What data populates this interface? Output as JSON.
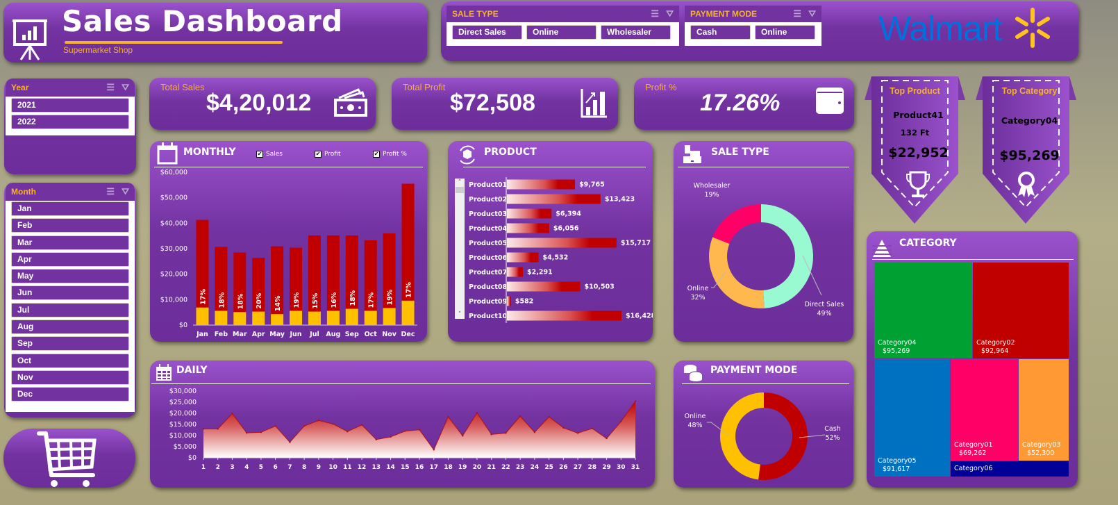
{
  "header": {
    "title": "Sales Dashboard",
    "subtitle": "Supermarket Shop",
    "brand": "Walmart"
  },
  "filters": {
    "sale_type": {
      "label": "SALE TYPE",
      "options": [
        "Direct Sales",
        "Online",
        "Wholesaler"
      ]
    },
    "payment_mode": {
      "label": "PAYMENT MODE",
      "options": [
        "Cash",
        "Online"
      ]
    },
    "year": {
      "label": "Year",
      "options": [
        "2021",
        "2022"
      ]
    },
    "month": {
      "label": "Month",
      "options": [
        "Jan",
        "Feb",
        "Mar",
        "Apr",
        "May",
        "Jun",
        "Jul",
        "Aug",
        "Sep",
        "Oct",
        "Nov",
        "Dec"
      ]
    }
  },
  "kpis": {
    "total_sales": {
      "label": "Total Sales",
      "value": "$4,20,012"
    },
    "total_profit": {
      "label": "Total Profit",
      "value": "$72,508"
    },
    "profit_pct": {
      "label": "Profit %",
      "value": "17.26%"
    }
  },
  "top_product": {
    "label": "Top Product",
    "name": "Product41",
    "qty": "132  Ft",
    "value": "$22,952"
  },
  "top_category": {
    "label": "Top Category",
    "name": "Category04",
    "value": "$95,269"
  },
  "panels": {
    "monthly": "MONTHLY",
    "product": "PRODUCT",
    "sale_type": "SALE TYPE",
    "daily": "DAILY",
    "payment_mode": "PAYMENT MODE",
    "category": "CATEGORY"
  },
  "colors": {
    "purple": "#7232a0",
    "orange": "#f7b12c",
    "red": "#c00000",
    "yellow": "#ffc000",
    "mint": "#99f9d0",
    "pink": "#ff0066",
    "walmart_blue": "#0071dc",
    "walmart_yellow": "#ffc220"
  },
  "chart_data": [
    {
      "type": "bar",
      "title": "MONTHLY",
      "legend": [
        "Sales",
        "Profit",
        "Profit %"
      ],
      "categories": [
        "Jan",
        "Feb",
        "Mar",
        "Apr",
        "May",
        "Jun",
        "Jul",
        "Aug",
        "Sep",
        "Oct",
        "Nov",
        "Dec"
      ],
      "series": [
        {
          "name": "Sales",
          "values": [
            41300,
            30700,
            28500,
            26400,
            30900,
            30400,
            35200,
            35200,
            35200,
            33300,
            36000,
            55500
          ]
        },
        {
          "name": "Profit",
          "values": [
            6900,
            5600,
            5100,
            5300,
            4300,
            5600,
            5300,
            5600,
            6400,
            5600,
            6700,
            9600
          ]
        },
        {
          "name": "Profit %",
          "values": [
            "17%",
            "18%",
            "18%",
            "20%",
            "14%",
            "19%",
            "15%",
            "16%",
            "18%",
            "17%",
            "19%",
            "17%"
          ]
        }
      ],
      "yticks": [
        "$0",
        "$10,000",
        "$20,000",
        "$30,000",
        "$40,000",
        "$50,000",
        "$60,000"
      ],
      "ylim": [
        0,
        60000
      ]
    },
    {
      "type": "bar",
      "title": "PRODUCT",
      "orientation": "horizontal",
      "categories": [
        "Product01",
        "Product02",
        "Product03",
        "Product04",
        "Product05",
        "Product06",
        "Product07",
        "Product08",
        "Product09",
        "Product10"
      ],
      "values": [
        9765,
        13423,
        6394,
        6056,
        15717,
        4532,
        2291,
        10503,
        582,
        16428
      ],
      "labels": [
        "$9,765",
        "$13,423",
        "$6,394",
        "$6,056",
        "$15,717",
        "$4,532",
        "$2,291",
        "$10,503",
        "$582",
        "$16,428"
      ]
    },
    {
      "type": "pie",
      "title": "SALE TYPE",
      "donut": true,
      "categories": [
        "Direct Sales",
        "Online",
        "Wholesaler"
      ],
      "values": [
        49,
        32,
        19
      ],
      "labels": [
        "49%",
        "32%",
        "19%"
      ]
    },
    {
      "type": "area",
      "title": "DAILY",
      "x": [
        1,
        2,
        3,
        4,
        5,
        6,
        7,
        8,
        9,
        10,
        11,
        12,
        13,
        14,
        15,
        16,
        17,
        18,
        19,
        20,
        21,
        22,
        23,
        24,
        25,
        26,
        27,
        28,
        29,
        30,
        31
      ],
      "values": [
        13000,
        13000,
        19900,
        11200,
        11500,
        14300,
        7000,
        14300,
        16800,
        15200,
        11800,
        14800,
        8200,
        9400,
        12000,
        12600,
        3600,
        18400,
        9900,
        20200,
        10500,
        11100,
        18700,
        11500,
        18400,
        13500,
        11100,
        13200,
        8700,
        16300,
        25400
      ],
      "yticks": [
        "$0",
        "$5,000",
        "$10,000",
        "$15,000",
        "$20,000",
        "$25,000",
        "$30,000"
      ],
      "ylim": [
        0,
        30000
      ]
    },
    {
      "type": "pie",
      "title": "PAYMENT MODE",
      "donut": true,
      "categories": [
        "Cash",
        "Online"
      ],
      "values": [
        52,
        48
      ],
      "labels": [
        "52%",
        "48%"
      ]
    },
    {
      "type": "heatmap",
      "subtype": "treemap",
      "title": "CATEGORY",
      "categories": [
        "Category04",
        "Category02",
        "Category05",
        "Category01",
        "Category03",
        "Category06"
      ],
      "values": [
        95269,
        92964,
        91617,
        69262,
        52300,
        null
      ],
      "labels": [
        "$95,269",
        "$92,964",
        "$91,617",
        "$69,262",
        "$52,300",
        ""
      ]
    }
  ]
}
